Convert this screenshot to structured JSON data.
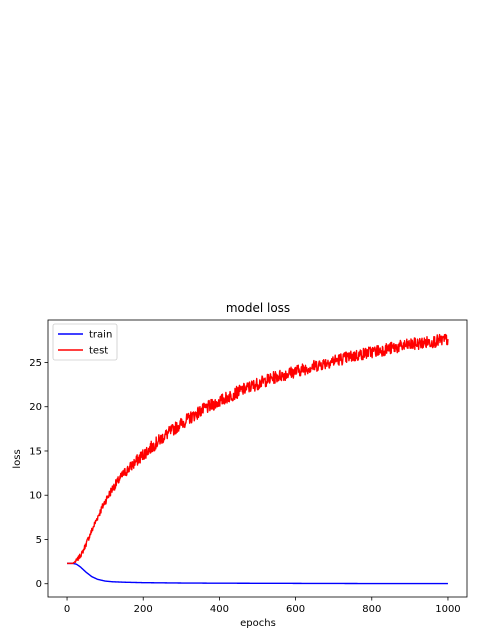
{
  "chart_data": {
    "type": "line",
    "title": "model loss",
    "xlabel": "epochs",
    "ylabel": "loss",
    "xlim": [
      -50,
      1050
    ],
    "ylim": [
      -1.5,
      29.8
    ],
    "xticks": [
      0,
      200,
      400,
      600,
      800,
      1000
    ],
    "yticks": [
      0,
      5,
      10,
      15,
      20,
      25
    ],
    "legend_position": "top-left",
    "grid": false,
    "series": [
      {
        "name": "train",
        "color": "#0000ff",
        "x": [
          0,
          15,
          25,
          35,
          50,
          65,
          80,
          100,
          120,
          150,
          200,
          300,
          400,
          500,
          600,
          700,
          800,
          900,
          1000
        ],
        "y": [
          2.3,
          2.3,
          2.2,
          1.9,
          1.3,
          0.8,
          0.5,
          0.3,
          0.22,
          0.17,
          0.12,
          0.08,
          0.06,
          0.05,
          0.04,
          0.03,
          0.02,
          0.02,
          0.02
        ],
        "noise": 0
      },
      {
        "name": "test",
        "color": "#ff0000",
        "x": [
          0,
          15,
          25,
          40,
          60,
          80,
          100,
          120,
          150,
          200,
          250,
          300,
          350,
          400,
          450,
          500,
          550,
          600,
          650,
          700,
          750,
          800,
          850,
          900,
          950,
          1000
        ],
        "y": [
          2.3,
          2.3,
          2.6,
          3.5,
          5.5,
          7.5,
          9.3,
          10.8,
          12.5,
          14.6,
          16.5,
          18.1,
          19.5,
          20.6,
          21.7,
          22.6,
          23.4,
          24.0,
          24.6,
          25.2,
          25.7,
          26.2,
          26.6,
          27.0,
          27.3,
          27.6
        ],
        "noise": 1.1
      }
    ]
  }
}
